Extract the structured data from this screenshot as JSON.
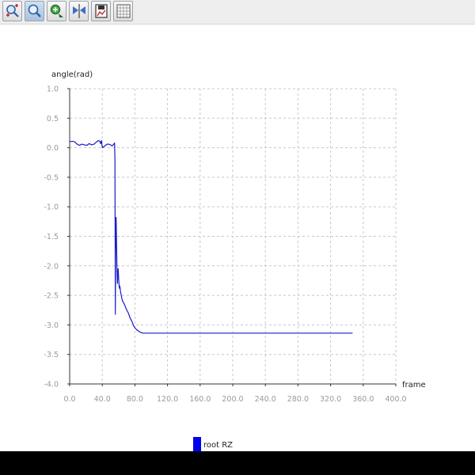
{
  "toolbar": {
    "buttons": [
      {
        "name": "zoom-in-icon",
        "active": false
      },
      {
        "name": "zoom-icon",
        "active": true
      },
      {
        "name": "pan-icon",
        "active": false
      },
      {
        "name": "fit-icon",
        "active": false
      },
      {
        "name": "save-icon",
        "active": false
      },
      {
        "name": "grid-icon",
        "active": false
      }
    ]
  },
  "chart_data": {
    "type": "line",
    "title": "",
    "xlabel": "frame",
    "ylabel": "angle(rad)",
    "xlim": [
      0,
      400
    ],
    "ylim": [
      -4,
      1
    ],
    "xticks": [
      "0.0",
      "40.0",
      "80.0",
      "120.0",
      "160.0",
      "200.0",
      "240.0",
      "280.0",
      "320.0",
      "360.0",
      "400.0"
    ],
    "yticks": [
      "1.0",
      "0.5",
      "0.0",
      "-0.5",
      "-1.0",
      "-1.5",
      "-2.0",
      "-2.5",
      "-3.0",
      "-3.5",
      "-4.0"
    ],
    "grid": true,
    "legend_position": "bottom",
    "series": [
      {
        "name": "root RZ",
        "color": "#1a1acc",
        "x": [
          0,
          3,
          6,
          9,
          12,
          15,
          18,
          21,
          24,
          27,
          30,
          33,
          35,
          37,
          38,
          39,
          40,
          42,
          44,
          46,
          48,
          50,
          52,
          54,
          55,
          55.5,
          56,
          56.5,
          57,
          57.5,
          58,
          58.5,
          59,
          59.5,
          60,
          60.5,
          61,
          61.5,
          62,
          62.5,
          63,
          64,
          65,
          66,
          68,
          70,
          72,
          74,
          76,
          78,
          80,
          82,
          84,
          86,
          88,
          90,
          95,
          100,
          150,
          200,
          250,
          300,
          347
        ],
        "y": [
          0.1,
          0.11,
          0.1,
          0.06,
          0.04,
          0.06,
          0.05,
          0.04,
          0.07,
          0.05,
          0.06,
          0.1,
          0.12,
          0.11,
          0.07,
          0.12,
          0.0,
          0.02,
          0.04,
          0.06,
          0.06,
          0.05,
          0.03,
          0.06,
          0.08,
          -0.2,
          -2.82,
          -1.2,
          -1.18,
          -1.6,
          -2.0,
          -2.3,
          -2.15,
          -2.05,
          -2.2,
          -2.3,
          -2.38,
          -2.34,
          -2.4,
          -2.45,
          -2.48,
          -2.55,
          -2.6,
          -2.62,
          -2.68,
          -2.75,
          -2.8,
          -2.88,
          -2.93,
          -3.0,
          -3.05,
          -3.08,
          -3.1,
          -3.12,
          -3.13,
          -3.14,
          -3.14,
          -3.14,
          -3.14,
          -3.14,
          -3.14,
          -3.14,
          -3.14
        ]
      }
    ]
  }
}
